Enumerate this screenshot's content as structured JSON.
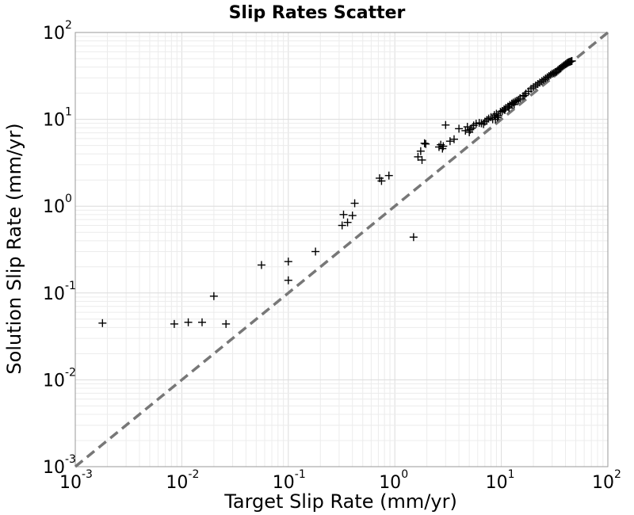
{
  "chart_data": {
    "type": "scatter",
    "title": "Slip Rates Scatter",
    "xlabel": "Target Slip Rate (mm/yr)",
    "ylabel": "Solution Slip Rate (mm/yr)",
    "xscale": "log",
    "yscale": "log",
    "xlim": [
      0.001,
      100
    ],
    "ylim": [
      0.001,
      100
    ],
    "grid": true,
    "marker": "+",
    "marker_color": "#000000",
    "reference_line": {
      "style": "dashed",
      "color": "#777777",
      "from": [
        0.001,
        0.001
      ],
      "to": [
        100,
        100
      ]
    },
    "x_ticks": [
      {
        "base": "10",
        "exp": "-3",
        "value": 0.001
      },
      {
        "base": "10",
        "exp": "-2",
        "value": 0.01
      },
      {
        "base": "10",
        "exp": "-1",
        "value": 0.1
      },
      {
        "base": "10",
        "exp": "0",
        "value": 1
      },
      {
        "base": "10",
        "exp": "1",
        "value": 10
      },
      {
        "base": "10",
        "exp": "2",
        "value": 100
      }
    ],
    "y_ticks": [
      {
        "base": "10",
        "exp": "-3",
        "value": 0.001
      },
      {
        "base": "10",
        "exp": "-2",
        "value": 0.01
      },
      {
        "base": "10",
        "exp": "-1",
        "value": 0.1
      },
      {
        "base": "10",
        "exp": "0",
        "value": 1
      },
      {
        "base": "10",
        "exp": "1",
        "value": 10
      },
      {
        "base": "10",
        "exp": "2",
        "value": 100
      }
    ],
    "x": [
      0.0018,
      0.0085,
      0.0115,
      0.0155,
      0.02,
      0.026,
      0.056,
      0.1,
      0.1,
      0.18,
      0.32,
      0.33,
      0.36,
      0.4,
      0.42,
      0.72,
      0.75,
      0.88,
      1.5,
      1.65,
      1.75,
      1.8,
      1.9,
      1.95,
      2.6,
      2.7,
      2.8,
      2.85,
      3.0,
      3.3,
      3.6,
      4.0,
      4.6,
      4.8,
      5.0,
      5.1,
      5.3,
      5.5,
      5.8,
      6.2,
      6.5,
      6.8,
      7.0,
      7.3,
      7.6,
      8.0,
      8.3,
      8.6,
      9.0,
      9.4,
      9.8,
      10.2,
      10.6,
      11.0,
      11.5,
      12.0,
      12.5,
      13.0,
      13.5,
      14.0,
      15.0,
      16.0,
      17.0,
      18.0,
      19.0,
      20.0,
      21.0,
      22.0,
      23.0,
      24.0,
      25.0,
      26.0,
      27.0,
      28.0,
      29.0,
      30.0,
      31.0,
      32.0,
      33.0,
      34.0,
      35.0,
      36.0,
      37.0,
      38.0,
      39.0,
      40.0,
      41.0,
      42.0,
      43.0,
      44.0,
      45.0,
      46.0,
      11.8,
      13.2,
      9.2,
      8.8,
      10.8,
      12.6,
      14.5,
      16.5
    ],
    "y": [
      0.045,
      0.044,
      0.046,
      0.046,
      0.092,
      0.044,
      0.21,
      0.14,
      0.23,
      0.3,
      0.6,
      0.8,
      0.65,
      0.78,
      1.08,
      2.1,
      1.95,
      2.25,
      0.44,
      3.7,
      4.3,
      3.4,
      5.3,
      5.2,
      4.8,
      5.1,
      4.6,
      4.9,
      8.6,
      5.6,
      5.9,
      7.8,
      7.4,
      8.2,
      7.1,
      7.6,
      7.9,
      8.5,
      8.9,
      9.1,
      9.0,
      8.8,
      9.4,
      9.8,
      10.2,
      10.6,
      10.0,
      11.2,
      11.6,
      11.0,
      12.2,
      12.5,
      13.0,
      13.5,
      14.0,
      14.6,
      15.0,
      15.6,
      16.0,
      16.4,
      17.5,
      18.5,
      19.8,
      21.0,
      22.5,
      23.5,
      24.5,
      25.5,
      26.5,
      27.5,
      28.5,
      29.5,
      30.5,
      31.5,
      32.5,
      33.5,
      34.0,
      35.0,
      35.5,
      37.0,
      38.0,
      39.0,
      40.0,
      41.0,
      42.0,
      43.0,
      44.0,
      45.0,
      45.5,
      46.0,
      46.5,
      47.0,
      13.5,
      14.8,
      10.5,
      10.0,
      12.8,
      15.2,
      16.8,
      18.8
    ]
  }
}
